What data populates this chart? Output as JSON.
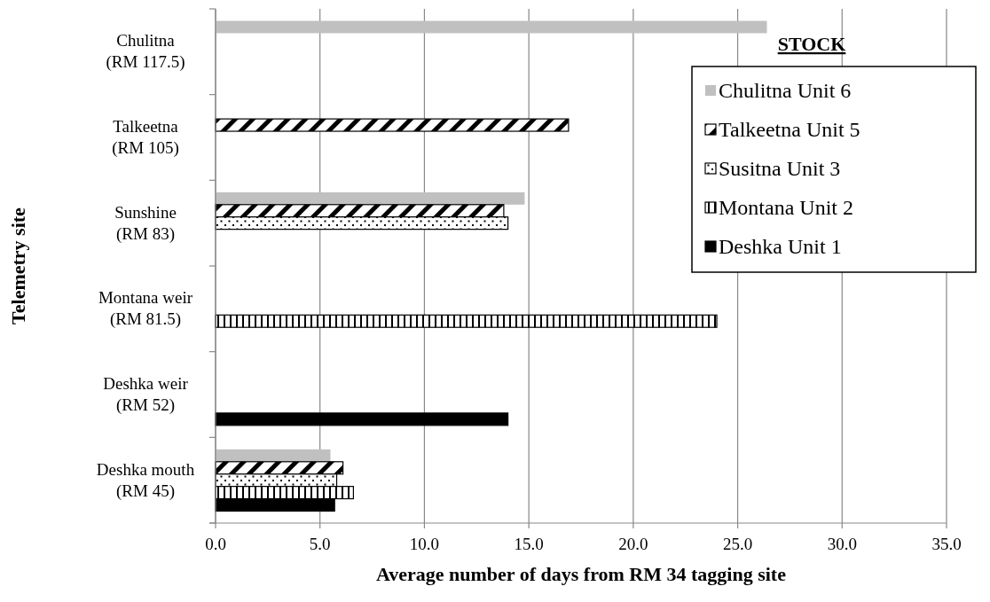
{
  "chart_data": {
    "type": "bar",
    "orientation": "horizontal",
    "categories": [
      "Chulitna\n(RM 117.5)",
      "Talkeetna\n(RM 105)",
      "Sunshine\n(RM 83)",
      "Montana weir\n(RM 81.5)",
      "Deshka weir\n(RM 52)",
      "Deshka mouth\n(RM 45)"
    ],
    "series": [
      {
        "name": "Chulitna Unit 6",
        "color": "#c0c0c0",
        "values": [
          26.4,
          null,
          14.8,
          null,
          null,
          5.5
        ]
      },
      {
        "name": "Talkeetna Unit 5",
        "color": "#000000",
        "values": [
          null,
          16.9,
          13.8,
          null,
          null,
          6.1
        ]
      },
      {
        "name": "Susitna Unit 3",
        "color": "#000000",
        "values": [
          null,
          null,
          14.0,
          null,
          null,
          5.8
        ]
      },
      {
        "name": "Montana Unit 2",
        "color": "#000000",
        "values": [
          null,
          null,
          null,
          24.0,
          null,
          6.6
        ]
      },
      {
        "name": "Deshka Unit 1",
        "color": "#000000",
        "values": [
          null,
          null,
          null,
          null,
          14.0,
          5.7
        ]
      }
    ],
    "xlim": [
      0,
      35
    ],
    "xticks": [
      {
        "value": 0,
        "label": "0.0"
      },
      {
        "value": 5,
        "label": "5.0"
      },
      {
        "value": 10,
        "label": "10.0"
      },
      {
        "value": 15,
        "label": "15.0"
      },
      {
        "value": 20,
        "label": "20.0"
      },
      {
        "value": 25,
        "label": "25.0"
      },
      {
        "value": 30,
        "label": "30.0"
      },
      {
        "value": 35,
        "label": "35.0"
      }
    ],
    "xlabel": "Average number of days from RM 34 tagging site",
    "ylabel": "Telemetry site",
    "legend_title": "STOCK",
    "legend": "top right",
    "grid": "x"
  }
}
